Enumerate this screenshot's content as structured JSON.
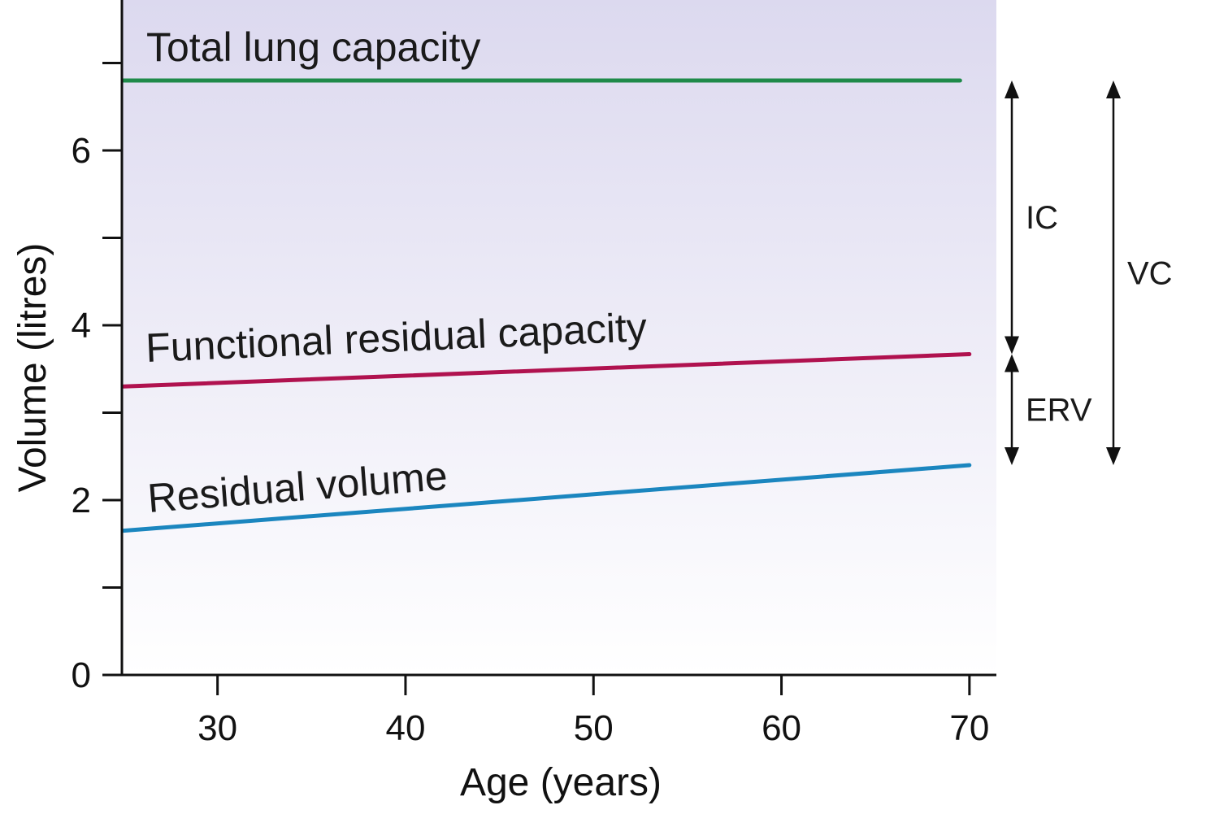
{
  "chart_data": {
    "type": "line",
    "title": "",
    "xlabel": "Age (years)",
    "ylabel": "Volume (litres)",
    "xlim": [
      25,
      70
    ],
    "ylim": [
      0,
      7.7
    ],
    "x_ticks": [
      30,
      40,
      50,
      60,
      70
    ],
    "y_ticks_labeled": [
      0,
      2,
      4,
      6
    ],
    "y_ticks_minor": [
      1,
      3,
      5,
      7
    ],
    "grid": false,
    "colors": {
      "total_lung_capacity": "#1e8a4a",
      "functional_residual_capacity": "#b0124f",
      "residual_volume": "#1b86bf",
      "plot_background_top": "#dcd9ef",
      "plot_background_bottom": "#ffffff"
    },
    "series": [
      {
        "key": "tlc",
        "name": "Total lung capacity",
        "x": [
          25,
          69.5
        ],
        "values": [
          6.8,
          6.8
        ]
      },
      {
        "key": "frc",
        "name": "Functional residual capacity",
        "x": [
          25,
          70
        ],
        "values": [
          3.3,
          3.67
        ]
      },
      {
        "key": "rv",
        "name": "Residual volume",
        "x": [
          25,
          70
        ],
        "values": [
          1.65,
          2.4
        ]
      }
    ],
    "annotations": [
      {
        "key": "ic",
        "label": "IC",
        "from": 6.8,
        "to": 3.67
      },
      {
        "key": "erv",
        "label": "ERV",
        "from": 3.67,
        "to": 2.4
      },
      {
        "key": "vc",
        "label": "VC",
        "from": 6.8,
        "to": 2.4
      }
    ]
  }
}
